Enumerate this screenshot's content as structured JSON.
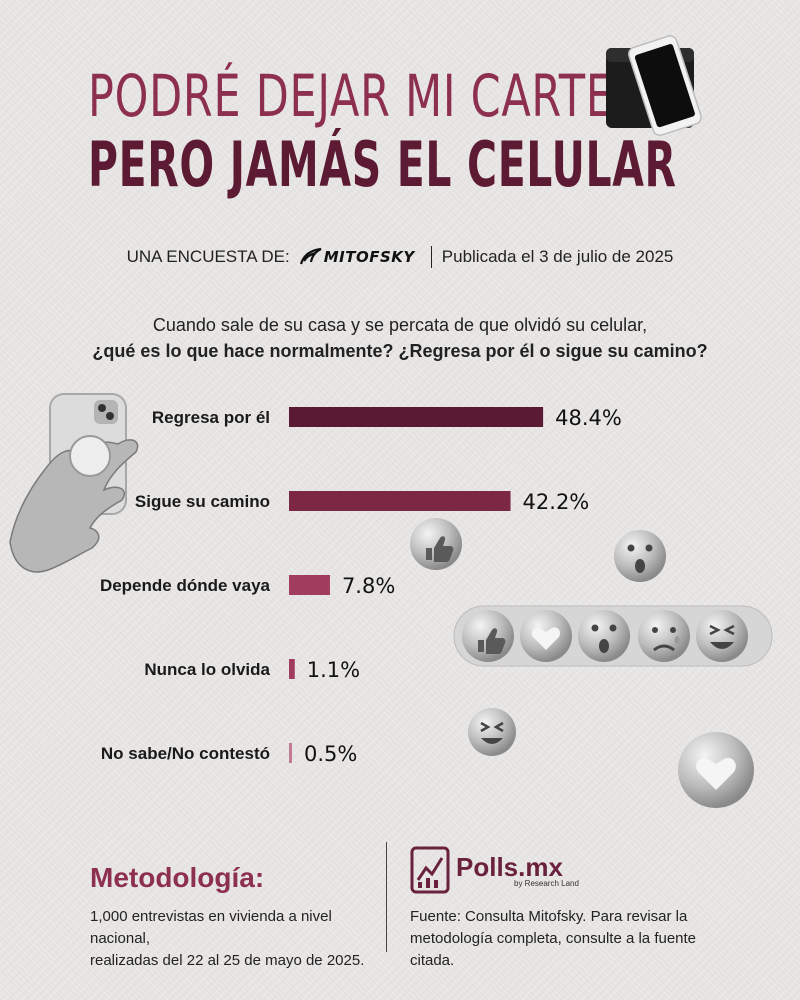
{
  "title": {
    "line1": "PODRÉ DEJAR MI CARTERA,",
    "line2": "PERO JAMÁS EL CELULAR"
  },
  "byline": {
    "prefix": "UNA ENCUESTA DE:",
    "brand": "MITOFSKY",
    "published": "Publicada el 3 de julio de 2025"
  },
  "question": {
    "line1": "Cuando sale de su casa y se percata de que olvidó su celular,",
    "line2": "¿qué es lo que hace normalmente? ¿Regresa por él o sigue su camino?"
  },
  "chart_data": {
    "type": "bar",
    "orientation": "horizontal",
    "categories": [
      "Regresa por él",
      "Sigue su camino",
      "Depende dónde vaya",
      "Nunca lo olvida",
      "No sabe/No contestó"
    ],
    "values": [
      48.4,
      42.2,
      7.8,
      1.1,
      0.5
    ],
    "value_labels": [
      "48.4%",
      "42.2%",
      "7.8%",
      "1.1%",
      "0.5%"
    ],
    "colors": [
      "#5a1a31",
      "#7c2844",
      "#a23c5e",
      "#a23c5e",
      "#c27b93"
    ],
    "grid": false,
    "legend": "none"
  },
  "methodology": {
    "title": "Metodología:",
    "line1": "1,000 entrevistas en vivienda a nivel nacional,",
    "line2": "realizadas del 22 al 25 de mayo de 2025."
  },
  "footer": {
    "brand": "Polls.mx",
    "brand_sub": "by Research Land",
    "source_line1": "Fuente: Consulta Mitofsky. Para revisar la",
    "source_line2": "metodología completa, consulte a la fuente citada."
  },
  "icons": {
    "wallet": "wallet-phone-icon",
    "hand": "hand-phone-icon",
    "reactions": [
      "like-icon",
      "heart-icon",
      "wow-icon",
      "sad-icon",
      "laugh-icon"
    ]
  }
}
